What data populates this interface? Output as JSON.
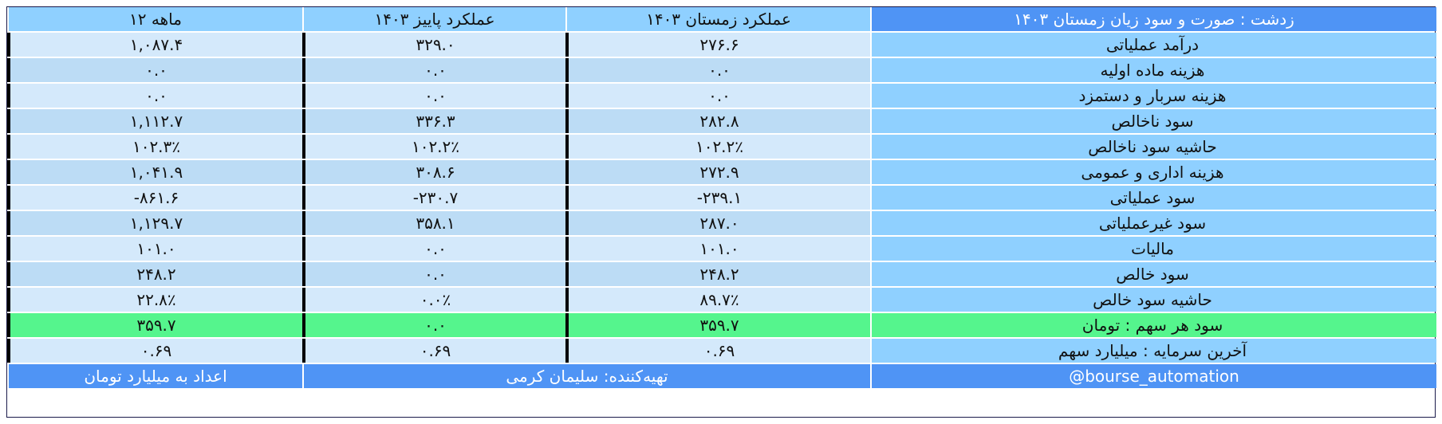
{
  "header": {
    "title": "زدشت : صورت و سود زیان زمستان ۱۴۰۳",
    "col_winter": "عملکرد زمستان ۱۴۰۳",
    "col_autumn": "عملکرد پاییز ۱۴۰۳",
    "col_12m": "ماهه ۱۲"
  },
  "rows": [
    {
      "label": "درآمد عملیاتی",
      "winter": "۲۷۶.۶",
      "autumn": "۳۲۹.۰",
      "m12": "۱,۰۸۷.۴"
    },
    {
      "label": "هزینه ماده اولیه",
      "winter": "۰.۰",
      "autumn": "۰.۰",
      "m12": "۰.۰"
    },
    {
      "label": "هزینه سربار و دستمزد",
      "winter": "۰.۰",
      "autumn": "۰.۰",
      "m12": "۰.۰"
    },
    {
      "label": "سود ناخالص",
      "winter": "۲۸۲.۸",
      "autumn": "۳۳۶.۳",
      "m12": "۱,۱۱۲.۷"
    },
    {
      "label": "حاشیه سود ناخالص",
      "winter": "۱۰۲.۲٪",
      "autumn": "۱۰۲.۲٪",
      "m12": "۱۰۲.۳٪"
    },
    {
      "label": "هزینه اداری و عمومی",
      "winter": "۲۷۲.۹",
      "autumn": "۳۰۸.۶",
      "m12": "۱,۰۴۱.۹"
    },
    {
      "label": "سود عملیاتی",
      "winter": "-۲۳۹.۱",
      "autumn": "-۲۳۰.۷",
      "m12": "-۸۶۱.۶"
    },
    {
      "label": "سود غیرعملیاتی",
      "winter": "۲۸۷.۰",
      "autumn": "۳۵۸.۱",
      "m12": "۱,۱۲۹.۷"
    },
    {
      "label": "مالیات",
      "winter": "۱۰۱.۰",
      "autumn": "۰.۰",
      "m12": "۱۰۱.۰"
    },
    {
      "label": "سود خالص",
      "winter": "۲۴۸.۲",
      "autumn": "۰.۰",
      "m12": "۲۴۸.۲"
    },
    {
      "label": "حاشیه سود خالص",
      "winter": "۸۹.۷٪",
      "autumn": "۰.۰٪",
      "m12": "۲۲.۸٪"
    },
    {
      "label": "سود هر سهم : تومان",
      "winter": "۳۵۹.۷",
      "autumn": "۰.۰",
      "m12": "۳۵۹.۷"
    },
    {
      "label": "آخرین سرمایه : میلیارد سهم",
      "winter": "۰.۶۹",
      "autumn": "۰.۶۹",
      "m12": "۰.۶۹"
    }
  ],
  "footer": {
    "handle": "@bourse_automation",
    "author": "تهیه‌کننده: سلیمان کرمی",
    "units": "اعداد به میلیارد تومان"
  },
  "colors": {
    "header": "#8fd0ff",
    "title": "#4f94f5",
    "highlight": "#55f58d"
  }
}
